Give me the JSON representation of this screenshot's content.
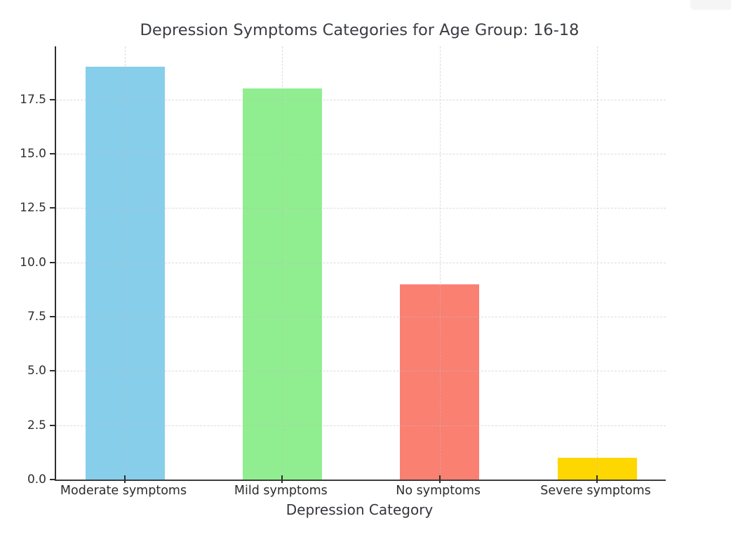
{
  "chart_data": {
    "type": "bar",
    "title": "Depression Symptoms Categories for Age Group: 16-18",
    "xlabel": "Depression Category",
    "ylabel": "",
    "categories": [
      "Moderate symptoms",
      "Mild symptoms",
      "No symptoms",
      "Severe symptoms"
    ],
    "values": [
      19,
      18,
      9,
      1
    ],
    "bar_colors": [
      "#87CEEB",
      "#90EE90",
      "#FA8072",
      "#FFD700"
    ],
    "ylim": [
      0,
      19.95
    ],
    "yticks": [
      0.0,
      2.5,
      5.0,
      7.5,
      10.0,
      12.5,
      15.0,
      17.5
    ],
    "ytick_labels": [
      "0.0",
      "2.5",
      "5.0",
      "7.5",
      "10.0",
      "12.5",
      "15.0",
      "17.5"
    ],
    "grid": "dashed, horizontal and vertical, drawn over bars",
    "legend": "none",
    "spines": [
      "left",
      "bottom"
    ],
    "colors": {
      "spine": "#2e2e2e",
      "gridline": "#bebebe",
      "title_text": "#3a3d42",
      "tick_text": "#2f2f2f",
      "background": "#ffffff"
    }
  }
}
